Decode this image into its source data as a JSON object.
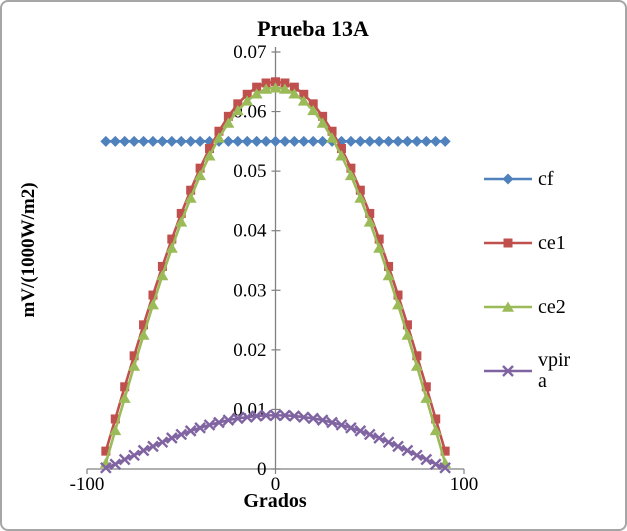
{
  "chart_data": {
    "type": "line",
    "title": "Prueba 13A",
    "xlabel": "Grados",
    "ylabel": "mV/(1000W/m2)",
    "xlim": [
      -100,
      100
    ],
    "ylim": [
      0,
      0.07
    ],
    "grid": false,
    "legend_position": "right",
    "axis_color": "#808080",
    "x_ticks": [
      {
        "value": -100,
        "label": "-100"
      },
      {
        "value": 0,
        "label": "0"
      },
      {
        "value": 100,
        "label": "100"
      }
    ],
    "y_ticks": [
      {
        "value": 0,
        "label": "0"
      },
      {
        "value": 0.01,
        "label": "0.01"
      },
      {
        "value": 0.02,
        "label": "0.02"
      },
      {
        "value": 0.03,
        "label": "0.03"
      },
      {
        "value": 0.04,
        "label": "0.04"
      },
      {
        "value": 0.05,
        "label": "0.05"
      },
      {
        "value": 0.06,
        "label": "0.06"
      },
      {
        "value": 0.07,
        "label": "0.07"
      }
    ],
    "x": [
      -90,
      -85,
      -80,
      -75,
      -70,
      -65,
      -60,
      -55,
      -50,
      -45,
      -40,
      -35,
      -30,
      -25,
      -20,
      -15,
      -10,
      -5,
      0,
      5,
      10,
      15,
      20,
      25,
      30,
      35,
      40,
      45,
      50,
      55,
      60,
      65,
      70,
      75,
      80,
      85,
      90
    ],
    "series": [
      {
        "name": "cf",
        "color": "#4F81BD",
        "marker": "diamond",
        "values": [
          0.055,
          0.055,
          0.055,
          0.055,
          0.055,
          0.055,
          0.055,
          0.055,
          0.055,
          0.055,
          0.055,
          0.055,
          0.055,
          0.055,
          0.055,
          0.055,
          0.055,
          0.055,
          0.055,
          0.055,
          0.055,
          0.055,
          0.055,
          0.055,
          0.055,
          0.055,
          0.055,
          0.055,
          0.055,
          0.055,
          0.055,
          0.055,
          0.055,
          0.055,
          0.055,
          0.055,
          0.055
        ]
      },
      {
        "name": "ce1",
        "color": "#C0504D",
        "marker": "square",
        "values": [
          0.003,
          0.0084,
          0.0138,
          0.019,
          0.0242,
          0.0292,
          0.034,
          0.0386,
          0.0429,
          0.0468,
          0.0505,
          0.0538,
          0.0567,
          0.0592,
          0.0613,
          0.0629,
          0.0641,
          0.0648,
          0.065,
          0.0648,
          0.0641,
          0.0629,
          0.0613,
          0.0592,
          0.0567,
          0.0538,
          0.0505,
          0.0468,
          0.0429,
          0.0386,
          0.034,
          0.0292,
          0.0242,
          0.019,
          0.0138,
          0.0084,
          0.003
        ]
      },
      {
        "name": "ce2",
        "color": "#9BBB59",
        "marker": "triangle",
        "values": [
          0.001,
          0.0065,
          0.0119,
          0.0173,
          0.0225,
          0.0276,
          0.0325,
          0.0371,
          0.0415,
          0.0455,
          0.0493,
          0.0526,
          0.0556,
          0.0581,
          0.0602,
          0.0618,
          0.063,
          0.0638,
          0.064,
          0.0638,
          0.063,
          0.0618,
          0.0602,
          0.0581,
          0.0556,
          0.0526,
          0.0493,
          0.0455,
          0.0415,
          0.0371,
          0.0325,
          0.0276,
          0.0225,
          0.0173,
          0.0119,
          0.0065,
          0.001
        ]
      },
      {
        "name": "vpira",
        "color": "#8064A2",
        "marker": "x",
        "values": [
          0.0002,
          0.0008,
          0.0016,
          0.0023,
          0.0031,
          0.0038,
          0.0045,
          0.0052,
          0.0058,
          0.0064,
          0.0069,
          0.0074,
          0.0078,
          0.0082,
          0.0085,
          0.0087,
          0.0089,
          0.009,
          0.009,
          0.009,
          0.0089,
          0.0087,
          0.0085,
          0.0082,
          0.0078,
          0.0074,
          0.0069,
          0.0064,
          0.0058,
          0.0052,
          0.0045,
          0.0038,
          0.0031,
          0.0023,
          0.0016,
          0.0008,
          0.0002
        ]
      }
    ]
  }
}
